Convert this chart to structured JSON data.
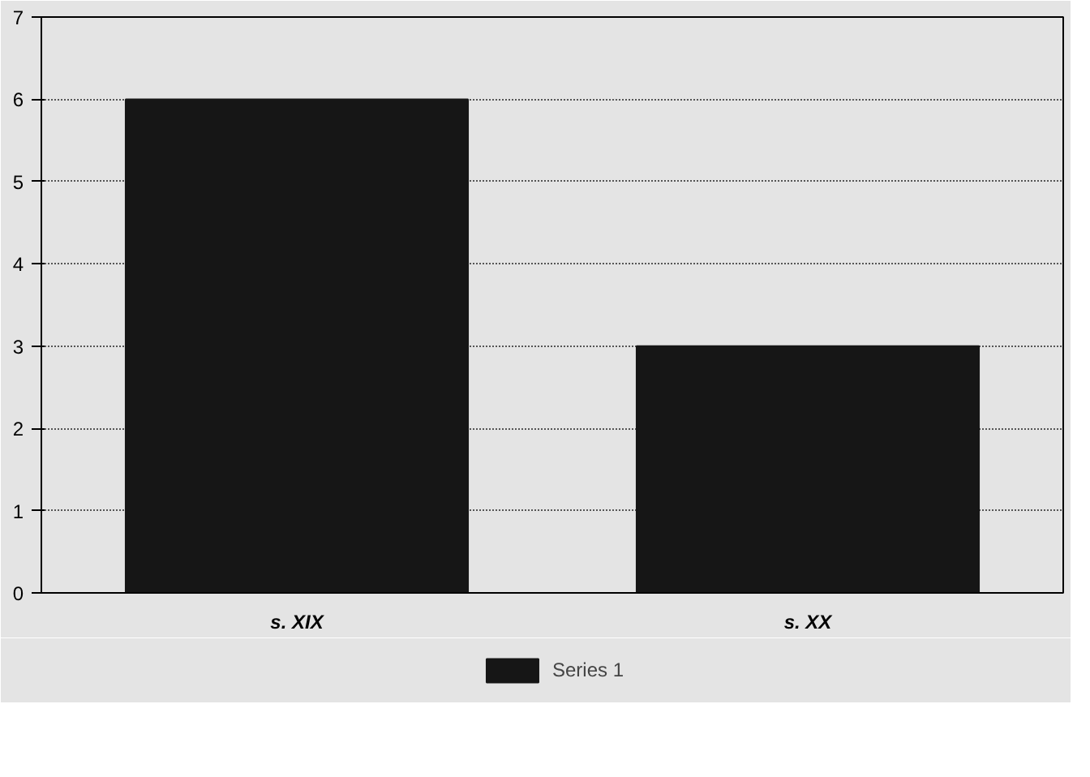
{
  "chart_data": {
    "type": "bar",
    "categories": [
      "s. XIX",
      "s. XX"
    ],
    "series": [
      {
        "name": "Series 1",
        "color": "#161616",
        "values": [
          6,
          3
        ]
      }
    ],
    "ylim": [
      0,
      7
    ],
    "yticks": [
      0,
      1,
      2,
      3,
      4,
      5,
      6,
      7
    ],
    "grid": "y",
    "legend": "bottom"
  }
}
